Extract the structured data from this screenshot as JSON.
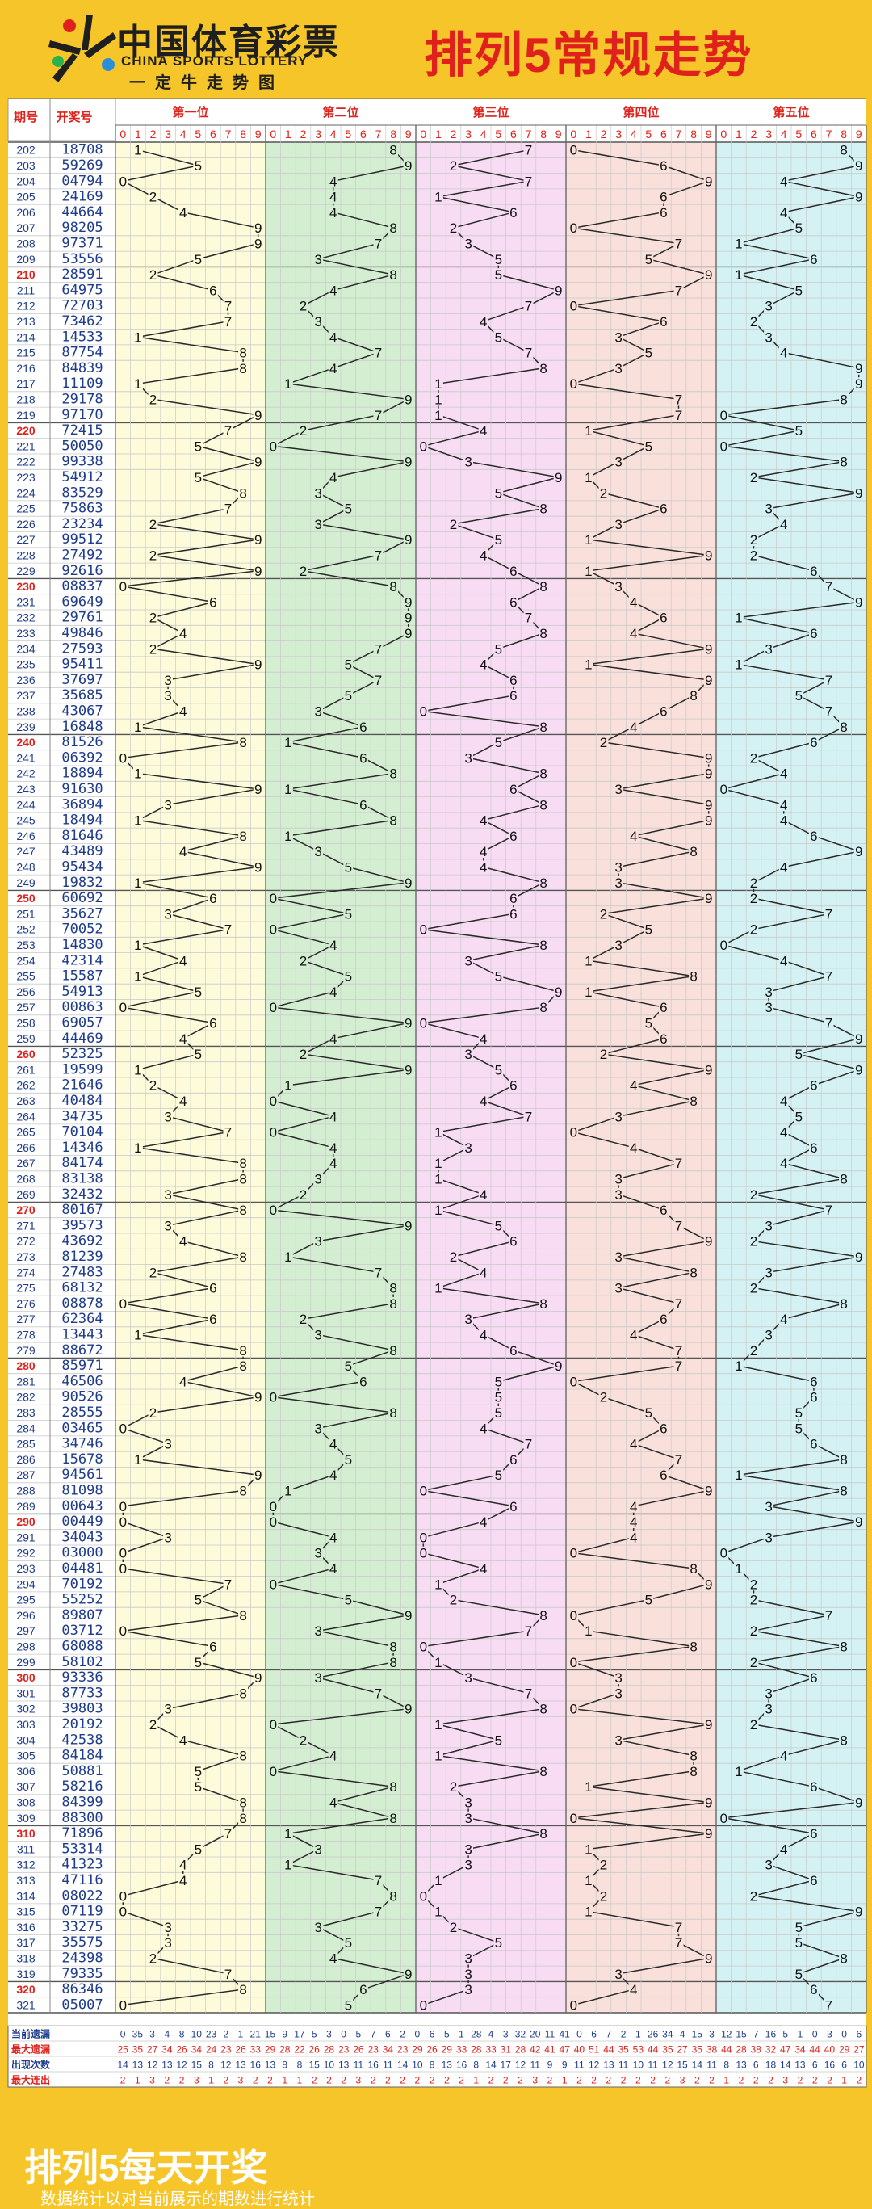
{
  "header": {
    "brand_cn": "中国体育彩票",
    "brand_en": "CHINA SPORTS LOTTERY",
    "slogan": "一定牛走势图",
    "title": "排列5常规走势"
  },
  "footer": {
    "title": "排列5每天开奖",
    "note": "数据统计以对当前展示的期数进行统计"
  },
  "colors": {
    "accent": "#e0201a",
    "background": "#f6c52a",
    "grid_line": "#c9c9c9",
    "zone_1": "#fdfbd9",
    "zone_2": "#d4eed2",
    "zone_3": "#f7dcf4",
    "zone_4": "#f9e0da",
    "zone_5": "#d4f2f3"
  },
  "chart_data": {
    "type": "table",
    "title": "排列5常规走势",
    "columns": {
      "issue": "期号",
      "numbers": "开奖号"
    },
    "positions": [
      "第一位",
      "第二位",
      "第三位",
      "第四位",
      "第五位"
    ],
    "digits": [
      "0",
      "1",
      "2",
      "3",
      "4",
      "5",
      "6",
      "7",
      "8",
      "9"
    ],
    "issues": [
      "202",
      "203",
      "204",
      "205",
      "206",
      "207",
      "208",
      "209",
      "210",
      "211",
      "212",
      "213",
      "214",
      "215",
      "216",
      "217",
      "218",
      "219",
      "220",
      "221",
      "222",
      "223",
      "224",
      "225",
      "226",
      "227",
      "228",
      "229",
      "230",
      "231",
      "232",
      "233",
      "234",
      "235",
      "236",
      "237",
      "238",
      "239",
      "240",
      "241",
      "242",
      "243",
      "244",
      "245",
      "246",
      "247",
      "248",
      "249",
      "250",
      "251",
      "252",
      "253",
      "254",
      "255",
      "256",
      "257",
      "258",
      "259",
      "260",
      "261",
      "262",
      "263",
      "264",
      "265",
      "266",
      "267",
      "268",
      "269",
      "270",
      "271",
      "272",
      "273",
      "274",
      "275",
      "276",
      "277",
      "278",
      "279",
      "280",
      "281",
      "282",
      "283",
      "284",
      "285",
      "286",
      "287",
      "288",
      "289",
      "290",
      "291",
      "292",
      "293",
      "294",
      "295",
      "296",
      "297",
      "298",
      "299",
      "300",
      "301",
      "302",
      "303",
      "304",
      "305",
      "306",
      "307",
      "308",
      "309",
      "310",
      "311",
      "312",
      "313",
      "314",
      "315",
      "316",
      "317",
      "318",
      "319",
      "320",
      "321"
    ],
    "draws": [
      "18708",
      "59269",
      "04794",
      "24169",
      "44664",
      "98205",
      "97371",
      "53556",
      "28591",
      "64975",
      "72703",
      "73462",
      "14533",
      "87754",
      "84839",
      "11109",
      "29178",
      "97170",
      "72415",
      "50050",
      "99338",
      "54912",
      "83529",
      "75863",
      "23234",
      "99512",
      "27492",
      "92616",
      "08837",
      "69649",
      "29761",
      "49846",
      "27593",
      "95411",
      "37697",
      "35685",
      "43067",
      "16848",
      "81526",
      "06392",
      "18894",
      "91630",
      "36894",
      "18494",
      "81646",
      "43489",
      "95434",
      "19832",
      "60692",
      "35627",
      "70052",
      "14830",
      "42314",
      "15587",
      "54913",
      "00863",
      "69057",
      "44469",
      "52325",
      "19599",
      "21646",
      "40484",
      "34735",
      "70104",
      "14346",
      "84174",
      "83138",
      "32432",
      "80167",
      "39573",
      "43692",
      "81239",
      "27483",
      "68132",
      "08878",
      "62364",
      "13443",
      "88672",
      "85971",
      "46506",
      "90526",
      "28555",
      "03465",
      "34746",
      "15678",
      "94561",
      "81098",
      "00643",
      "00449",
      "34043",
      "03000",
      "04481",
      "70192",
      "55252",
      "89807",
      "03712",
      "68088",
      "58102",
      "93336",
      "87733",
      "39803",
      "20192",
      "42538",
      "84184",
      "50881",
      "58216",
      "84399",
      "88300",
      "71896",
      "53314",
      "41323",
      "47116",
      "08022",
      "07119",
      "33275",
      "35575",
      "24398",
      "79335",
      "86346",
      "05007"
    ],
    "stats": [
      {
        "label": "当前遗漏",
        "values": [
          "0",
          "35",
          "3",
          "4",
          "8",
          "10",
          "23",
          "2",
          "1",
          "21",
          "15",
          "9",
          "17",
          "5",
          "3",
          "0",
          "5",
          "7",
          "6",
          "2",
          "0",
          "6",
          "5",
          "1",
          "28",
          "4",
          "3",
          "32",
          "20",
          "11",
          "41",
          "0",
          "6",
          "7",
          "2",
          "1",
          "26",
          "34",
          "4",
          "15",
          "3",
          "12",
          "15",
          "7",
          "16",
          "5",
          "1",
          "0",
          "3",
          "0",
          "6"
        ]
      },
      {
        "label": "最大遗漏",
        "values": [
          "25",
          "35",
          "27",
          "34",
          "26",
          "34",
          "24",
          "23",
          "26",
          "33",
          "29",
          "28",
          "22",
          "26",
          "28",
          "23",
          "26",
          "23",
          "34",
          "23",
          "29",
          "26",
          "29",
          "33",
          "28",
          "33",
          "31",
          "28",
          "42",
          "41",
          "47",
          "40",
          "51",
          "44",
          "35",
          "53",
          "44",
          "35",
          "27",
          "35",
          "38",
          "44",
          "28",
          "38",
          "32",
          "47",
          "34",
          "44",
          "40",
          "29",
          "27"
        ]
      },
      {
        "label": "出现次数",
        "values": [
          "14",
          "13",
          "12",
          "13",
          "12",
          "15",
          "8",
          "12",
          "13",
          "16",
          "13",
          "8",
          "8",
          "15",
          "10",
          "13",
          "11",
          "16",
          "11",
          "14",
          "10",
          "8",
          "13",
          "16",
          "8",
          "14",
          "17",
          "12",
          "11",
          "9",
          "9",
          "11",
          "12",
          "13",
          "11",
          "10",
          "11",
          "12",
          "15",
          "14",
          "11",
          "8",
          "13",
          "6",
          "18",
          "14",
          "13",
          "6",
          "16",
          "6",
          "10"
        ]
      },
      {
        "label": "最大连出",
        "values": [
          "2",
          "1",
          "3",
          "2",
          "2",
          "3",
          "1",
          "2",
          "3",
          "2",
          "2",
          "1",
          "1",
          "2",
          "2",
          "2",
          "3",
          "2",
          "2",
          "2",
          "2",
          "2",
          "2",
          "2",
          "1",
          "2",
          "2",
          "2",
          "3",
          "2",
          "1",
          "2",
          "2",
          "2",
          "2",
          "2",
          "2",
          "2",
          "3",
          "2",
          "2",
          "1",
          "2",
          "2",
          "2",
          "3",
          "2",
          "2",
          "2",
          "1",
          "2"
        ]
      }
    ]
  }
}
